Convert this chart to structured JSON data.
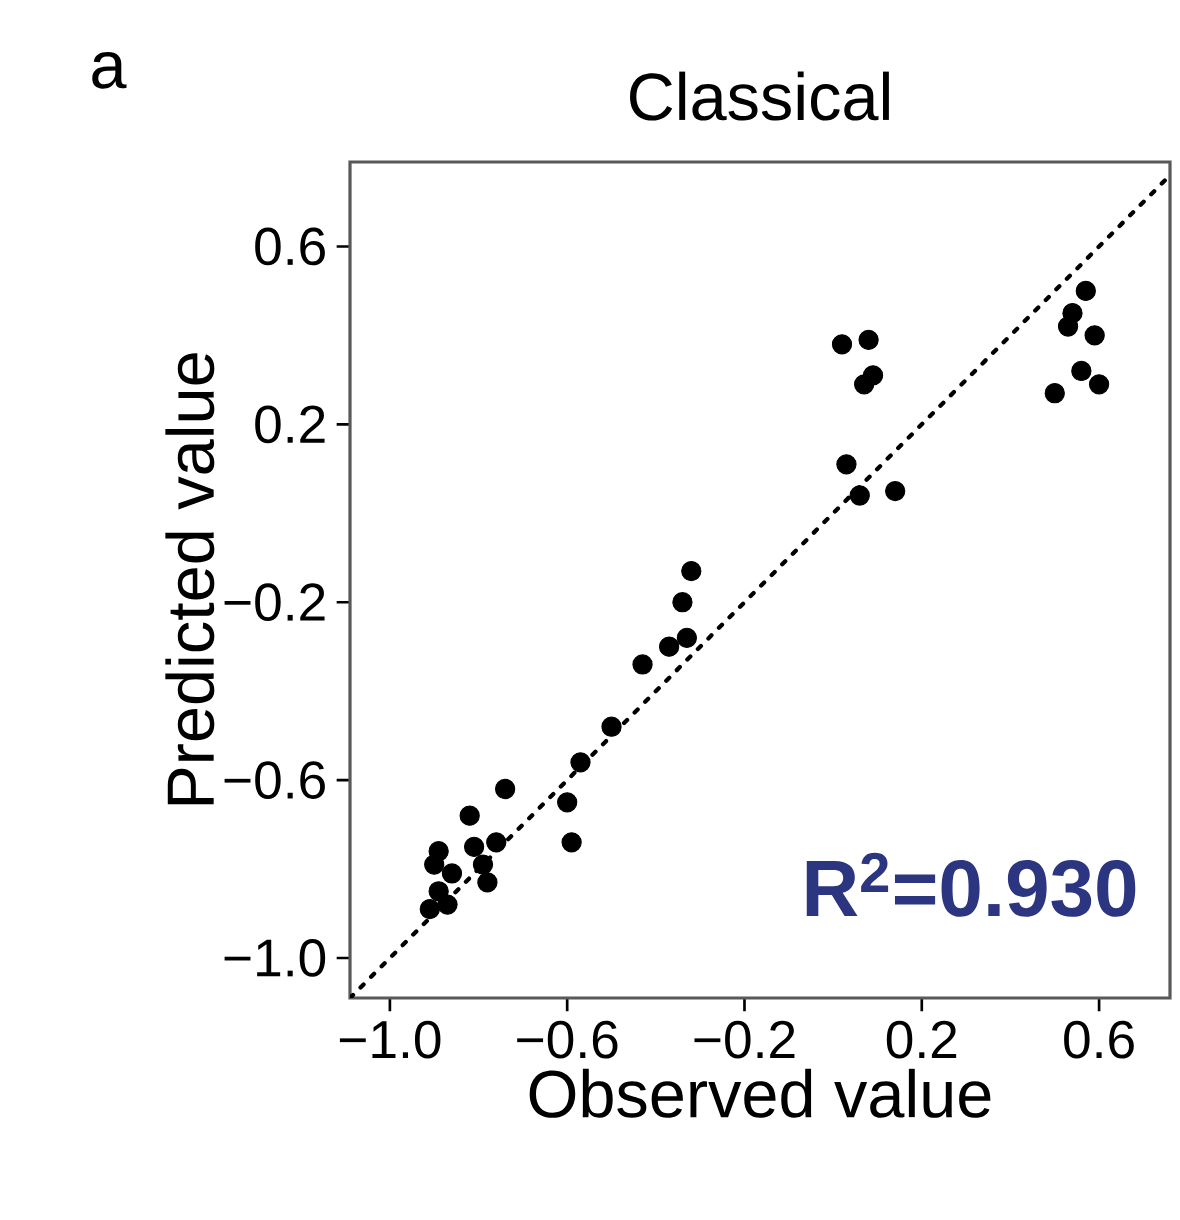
{
  "chart_data": {
    "type": "scatter",
    "title": "Classical",
    "xlabel": "Observed value",
    "ylabel": "Predicted value",
    "annotations": [
      "a",
      "**R$^{2}$=0.930**"
    ],
    "xlim": [
      -1.09,
      0.76
    ],
    "ylim": [
      -1.09,
      0.79
    ],
    "xticks": [
      {
        "value": -1.0,
        "label": "−1.0"
      },
      {
        "value": -0.6,
        "label": "−0.6"
      },
      {
        "value": -0.2,
        "label": "−0.2"
      },
      {
        "value": 0.2,
        "label": "0.2"
      },
      {
        "value": 0.6,
        "label": "0.6"
      }
    ],
    "yticks": [
      {
        "value": -1.0,
        "label": "−1.0"
      },
      {
        "value": -0.6,
        "label": "−0.6"
      },
      {
        "value": -0.2,
        "label": "−0.2"
      },
      {
        "value": 0.2,
        "label": "0.2"
      },
      {
        "value": 0.6,
        "label": "0.6"
      }
    ],
    "grid": false,
    "series": [
      {
        "color": "#000000",
        "marker": "circle",
        "x": [
          0.02,
          0.08,
          0.07,
          0.09,
          0.03,
          0.06,
          0.14,
          0.57,
          0.54,
          0.53,
          0.59,
          0.56,
          0.6,
          0.5,
          -0.32,
          -0.34,
          -0.33,
          -0.37,
          -0.43,
          -0.5,
          -0.57,
          -0.6,
          -0.59,
          -0.74,
          -0.82,
          -0.76,
          -0.81,
          -0.89,
          -0.79,
          -0.78,
          -0.9,
          -0.86,
          -0.89,
          -0.87,
          -0.91
        ],
        "values": [
          0.38,
          0.39,
          0.29,
          0.31,
          0.11,
          0.04,
          0.05,
          0.5,
          0.45,
          0.42,
          0.4,
          0.32,
          0.29,
          0.27,
          -0.13,
          -0.2,
          -0.28,
          -0.3,
          -0.34,
          -0.48,
          -0.56,
          -0.65,
          -0.74,
          -0.62,
          -0.68,
          -0.74,
          -0.75,
          -0.76,
          -0.79,
          -0.83,
          -0.79,
          -0.81,
          -0.85,
          -0.88,
          -0.89
        ]
      },
      {
        "type": "line",
        "color": "#000000",
        "line_style": "dotted",
        "marker": "none",
        "x": [
          -1.09,
          0.76
        ],
        "values": [
          -1.09,
          0.76
        ]
      }
    ]
  }
}
